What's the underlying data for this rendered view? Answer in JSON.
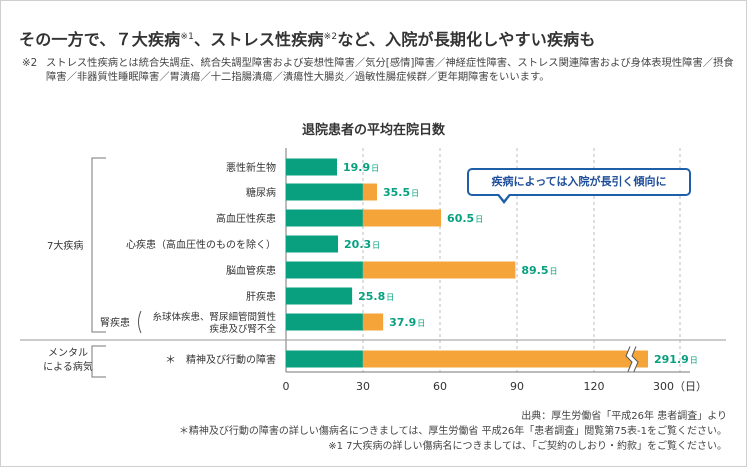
{
  "headline": {
    "text1": "その一方で、７大疾病",
    "sup1": "※1",
    "text2": "、ストレス性疾病",
    "sup2": "※2",
    "text3": "など、入院が長期化しやすい疾病も"
  },
  "note2": {
    "marker": "※2",
    "text": "ストレス性疾病とは統合失調症、統合失調型障害および妄想性障害／気分[感情]障害／神経症性障害、ストレス関連障害および身体表現性障害／摂食障害／非器質性睡眠障害／胃潰瘍／十二指腸潰瘍／潰瘍性大腸炎／過敏性腸症候群／更年期障害をいいます。"
  },
  "callout": "疾病によっては入院が長引く傾向に",
  "footnotes": {
    "source": "出典：厚生労働省「平成26年 患者調査」より",
    "note_mental": "＊精神及び行動の障害の詳しい傷病名につきましては、厚生労働省 平成26年「患者調査」閲覧第75表-1をご覧ください。",
    "note_seven": "※1 7大疾病の詳しい傷病名につきましては、「ご契約のしおり・約款」をご覧ください。"
  },
  "colors": {
    "baseline_bar": "#08a07f",
    "excess_bar": "#f5a43a",
    "value_text": "#08a07f",
    "gridline": "#bdbdbd",
    "callout_border": "#1f5fa8"
  },
  "chart_data": {
    "type": "bar",
    "orientation": "horizontal",
    "title": "退院患者の平均在院日数",
    "categories": [
      "悪性新生物",
      "糖尿病",
      "高血圧性疾患",
      "心疾患（高血圧性のものを除く）",
      "脳血管疾患",
      "肝疾患",
      "糸球体疾患、腎尿細管間質性疾患及び腎不全",
      "精神及び行動の障害"
    ],
    "values": [
      19.9,
      35.5,
      60.5,
      20.3,
      89.5,
      25.8,
      37.9,
      291.9
    ],
    "value_labels": [
      "19.9",
      "35.5",
      "60.5",
      "20.3",
      "89.5",
      "25.8",
      "37.9",
      "291.9"
    ],
    "value_unit": "日",
    "reference_value": 30,
    "axis_break_on_last": true,
    "x_ticks": [
      "0",
      "30",
      "60",
      "90",
      "120",
      "300（日）"
    ],
    "row_labels": [
      {
        "lines": [
          "悪性新生物"
        ]
      },
      {
        "lines": [
          "糖尿病"
        ]
      },
      {
        "lines": [
          "高血圧性疾患"
        ]
      },
      {
        "lines": [
          "心疾患（高血圧性のものを除く）"
        ]
      },
      {
        "lines": [
          "脳血管疾患"
        ]
      },
      {
        "lines": [
          "肝疾患"
        ]
      },
      {
        "lines": [
          "糸球体疾患、腎尿細管間質性",
          "疾患及び腎不全"
        ],
        "prefix": "腎疾患"
      },
      {
        "lines": [
          "精神及び行動の障害"
        ],
        "star": "＊"
      }
    ],
    "groups": [
      {
        "label": "7大疾病"
      },
      {
        "label_lines": [
          "メンタル",
          "による病気"
        ]
      }
    ]
  }
}
